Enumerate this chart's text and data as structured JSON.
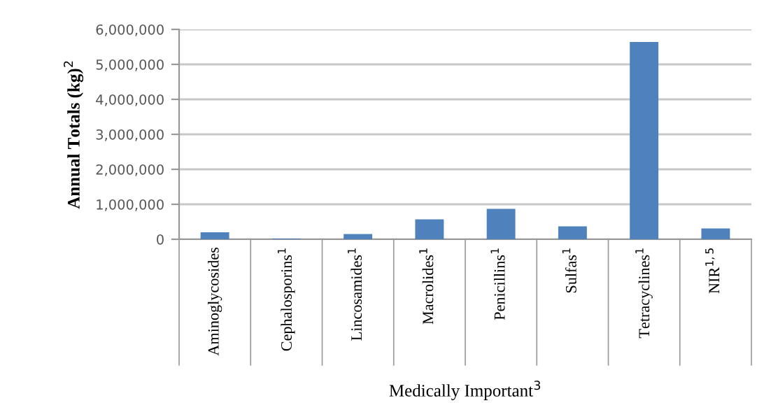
{
  "chart_data": {
    "type": "bar",
    "ylabel": "Annual Totals (kg)$^{2}$",
    "xlabel": "Medically Important$^{3}$",
    "categories": [
      "Aminoglycosides",
      "Cephalosporins$^{1}$",
      "Lincosamides$^{1}$",
      "Macrolides$^{1}$",
      "Penicillins$^{1}$",
      "Sulfas$^{1}$",
      "Tetracyclines$^{1}$",
      "NIR$^{1,5}$"
    ],
    "values": [
      200000,
      20000,
      150000,
      570000,
      870000,
      370000,
      5640000,
      310000
    ],
    "color": "#4f81bd",
    "ylim": [
      0,
      6000000
    ],
    "yticks": [
      {
        "value": 0,
        "label": "0"
      },
      {
        "value": 1000000,
        "label": "1,000,000"
      },
      {
        "value": 2000000,
        "label": "2,000,000"
      },
      {
        "value": 3000000,
        "label": "3,000,000"
      },
      {
        "value": 4000000,
        "label": "4,000,000"
      },
      {
        "value": 5000000,
        "label": "5,000,000"
      },
      {
        "value": 6000000,
        "label": "6,000,000"
      }
    ],
    "grid": "y"
  }
}
